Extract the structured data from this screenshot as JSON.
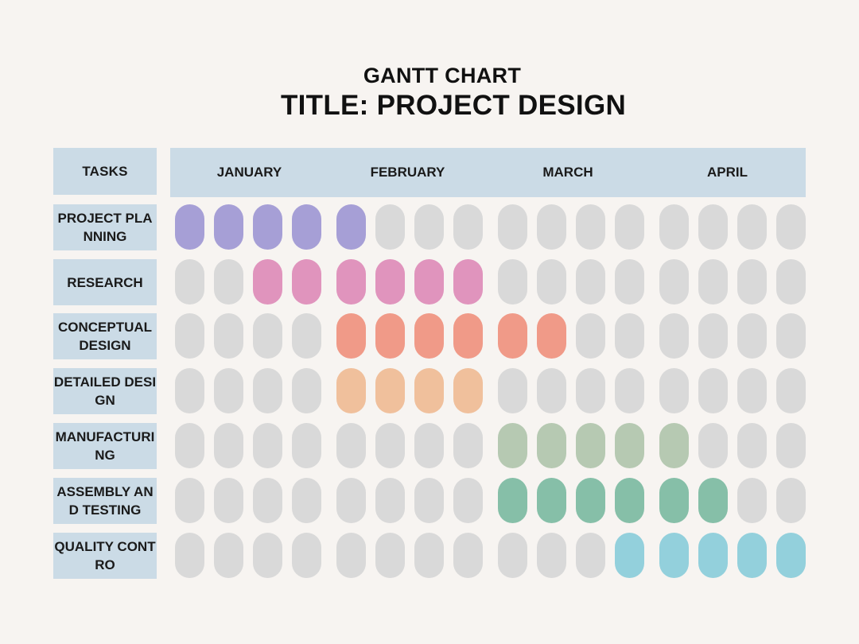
{
  "header": {
    "subtitle": "GANTT CHART",
    "title": "TITLE: PROJECT DESIGN",
    "tasks_label": "TASKS"
  },
  "chart_data": {
    "type": "gantt",
    "months": [
      {
        "label": "JANUARY",
        "weeks": 4
      },
      {
        "label": "FEBRUARY",
        "weeks": 4
      },
      {
        "label": "MARCH",
        "weeks": 4
      },
      {
        "label": "APRIL",
        "weeks": 4
      }
    ],
    "empty_color": "#d9d9d9",
    "tasks": [
      {
        "label": "PROJECT PLANNING",
        "start_week": 1,
        "end_week": 5,
        "color": "#a69fd6"
      },
      {
        "label": "RESEARCH",
        "start_week": 3,
        "end_week": 8,
        "color": "#e094bd"
      },
      {
        "label": "CONCEPTUAL DESIGN",
        "start_week": 5,
        "end_week": 10,
        "color": "#f09a88"
      },
      {
        "label": "DETAILED DESIGN",
        "start_week": 5,
        "end_week": 8,
        "color": "#f0c09c"
      },
      {
        "label": "MANUFACTURING",
        "start_week": 9,
        "end_week": 13,
        "color": "#b6c9b2"
      },
      {
        "label": "ASSEMBLY AND TESTING",
        "start_week": 9,
        "end_week": 14,
        "color": "#86bfa8"
      },
      {
        "label": "QUALITY CONTRO",
        "start_week": 12,
        "end_week": 16,
        "color": "#93d0dc"
      }
    ]
  }
}
